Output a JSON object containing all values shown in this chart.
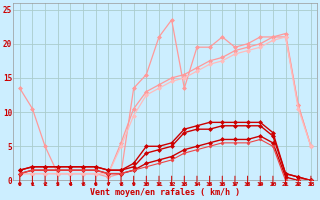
{
  "bg_color": "#cceeff",
  "grid_color": "#aacccc",
  "xlabel": "Vent moyen/en rafales ( km/h )",
  "xlabel_color": "#cc0000",
  "tick_color": "#cc0000",
  "ylim": [
    0,
    26
  ],
  "xlim": [
    -0.5,
    23.5
  ],
  "yticks": [
    0,
    5,
    10,
    15,
    20,
    25
  ],
  "xticks": [
    0,
    1,
    2,
    3,
    4,
    5,
    6,
    7,
    8,
    9,
    10,
    11,
    12,
    13,
    14,
    15,
    16,
    17,
    18,
    19,
    20,
    21,
    22,
    23
  ],
  "series": [
    {
      "x": [
        0,
        1,
        2,
        3,
        4,
        5,
        6,
        7,
        8,
        9,
        10,
        11,
        12,
        13,
        14,
        15,
        16,
        17,
        18,
        19,
        20,
        21,
        22,
        23
      ],
      "y": [
        13.5,
        10.5,
        5.0,
        1.0,
        1.0,
        1.0,
        1.0,
        0.5,
        1.0,
        13.5,
        15.5,
        21.0,
        23.5,
        13.5,
        19.5,
        19.5,
        21.0,
        19.5,
        20.0,
        21.0,
        21.0,
        21.5,
        11.0,
        5.0
      ],
      "color": "#ff9999",
      "lw": 0.9,
      "marker": "D",
      "ms": 2.0,
      "mew": 0.5
    },
    {
      "x": [
        0,
        1,
        2,
        3,
        4,
        5,
        6,
        7,
        8,
        9,
        10,
        11,
        12,
        13,
        14,
        15,
        16,
        17,
        18,
        19,
        20,
        21,
        22,
        23
      ],
      "y": [
        1.0,
        1.0,
        1.0,
        1.0,
        1.0,
        1.0,
        1.0,
        1.0,
        5.5,
        10.5,
        13.0,
        14.0,
        15.0,
        15.5,
        16.5,
        17.5,
        18.0,
        19.0,
        19.5,
        20.0,
        21.0,
        21.0,
        11.0,
        5.0
      ],
      "color": "#ff9999",
      "lw": 0.9,
      "marker": "D",
      "ms": 2.0,
      "mew": 0.5
    },
    {
      "x": [
        0,
        1,
        2,
        3,
        4,
        5,
        6,
        7,
        8,
        9,
        10,
        11,
        12,
        13,
        14,
        15,
        16,
        17,
        18,
        19,
        20,
        21,
        22,
        23
      ],
      "y": [
        1.0,
        1.0,
        1.0,
        1.0,
        1.0,
        1.0,
        1.0,
        1.0,
        5.0,
        9.5,
        12.5,
        13.5,
        14.5,
        15.0,
        16.0,
        17.0,
        17.5,
        18.5,
        19.0,
        19.5,
        20.5,
        21.0,
        10.5,
        5.0
      ],
      "color": "#ffbbbb",
      "lw": 0.9,
      "marker": "D",
      "ms": 2.0,
      "mew": 0.5
    },
    {
      "x": [
        0,
        1,
        2,
        3,
        4,
        5,
        6,
        7,
        8,
        9,
        10,
        11,
        12,
        13,
        14,
        15,
        16,
        17,
        18,
        19,
        20,
        21,
        22,
        23
      ],
      "y": [
        1.5,
        2.0,
        2.0,
        2.0,
        2.0,
        2.0,
        2.0,
        1.5,
        1.5,
        2.5,
        5.0,
        5.0,
        5.5,
        7.5,
        8.0,
        8.5,
        8.5,
        8.5,
        8.5,
        8.5,
        7.0,
        1.0,
        0.5,
        0.0
      ],
      "color": "#cc0000",
      "lw": 1.0,
      "marker": "D",
      "ms": 2.0,
      "mew": 0.5
    },
    {
      "x": [
        0,
        1,
        2,
        3,
        4,
        5,
        6,
        7,
        8,
        9,
        10,
        11,
        12,
        13,
        14,
        15,
        16,
        17,
        18,
        19,
        20,
        21,
        22,
        23
      ],
      "y": [
        1.5,
        2.0,
        2.0,
        2.0,
        2.0,
        2.0,
        2.0,
        1.5,
        1.5,
        2.0,
        4.0,
        4.5,
        5.0,
        7.0,
        7.5,
        7.5,
        8.0,
        8.0,
        8.0,
        8.0,
        6.5,
        1.0,
        0.5,
        0.0
      ],
      "color": "#cc0000",
      "lw": 1.0,
      "marker": "D",
      "ms": 2.0,
      "mew": 0.5
    },
    {
      "x": [
        0,
        1,
        2,
        3,
        4,
        5,
        6,
        7,
        8,
        9,
        10,
        11,
        12,
        13,
        14,
        15,
        16,
        17,
        18,
        19,
        20,
        21,
        22,
        23
      ],
      "y": [
        1.0,
        1.5,
        1.5,
        1.5,
        1.5,
        1.5,
        1.5,
        1.0,
        1.0,
        1.5,
        2.5,
        3.0,
        3.5,
        4.5,
        5.0,
        5.5,
        6.0,
        6.0,
        6.0,
        6.5,
        5.5,
        0.5,
        0.0,
        0.0
      ],
      "color": "#cc0000",
      "lw": 1.0,
      "marker": "D",
      "ms": 2.0,
      "mew": 0.5
    },
    {
      "x": [
        0,
        1,
        2,
        3,
        4,
        5,
        6,
        7,
        8,
        9,
        10,
        11,
        12,
        13,
        14,
        15,
        16,
        17,
        18,
        19,
        20,
        21,
        22,
        23
      ],
      "y": [
        1.0,
        1.5,
        1.5,
        1.5,
        1.5,
        1.5,
        1.5,
        1.0,
        1.0,
        1.5,
        2.0,
        2.5,
        3.0,
        4.0,
        4.5,
        5.0,
        5.5,
        5.5,
        5.5,
        6.0,
        5.0,
        0.0,
        0.0,
        0.0
      ],
      "color": "#ee4444",
      "lw": 0.8,
      "marker": "D",
      "ms": 1.5,
      "mew": 0.5
    }
  ]
}
